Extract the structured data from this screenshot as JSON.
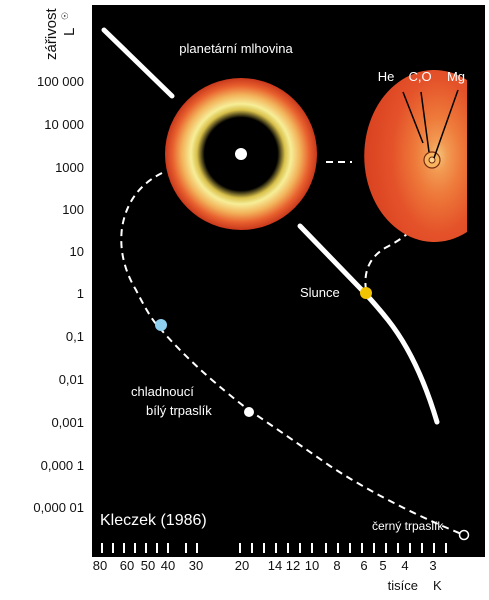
{
  "diagram": {
    "y_axis_label": "zářivost",
    "y_axis_unit": "L",
    "y_axis_unit_sub": "☉",
    "y_ticks": [
      "100 000",
      "10 000",
      "1000",
      "100",
      "10",
      "1",
      "0,1",
      "0,01",
      "0,001",
      "0,000 1",
      "0,000 01"
    ],
    "x_ticks": [
      "80",
      "60",
      "50",
      "40",
      "30",
      "20",
      "14",
      "12",
      "10",
      "8",
      "6",
      "5",
      "4",
      "3"
    ],
    "x_axis_label": "tisíce",
    "x_axis_unit": "K",
    "labels": {
      "nebula": "planetární mlhovina",
      "sun": "Slunce",
      "white_dwarf_line1": "chladnoucí",
      "white_dwarf_line2": "bílý trpaslík",
      "black_dwarf": "černý trpaslík",
      "credit": "Kleczek (1986)",
      "core_he": "He",
      "core_co": "C,O",
      "core_mg": "Mg"
    },
    "colors": {
      "background": "#000000",
      "sun": "#f2c300",
      "hot_dwarf": "#8fd0f0",
      "nebula_outer": "#e4582a",
      "nebula_ring": "#f6e98a",
      "giant": "#e34a1e"
    }
  }
}
